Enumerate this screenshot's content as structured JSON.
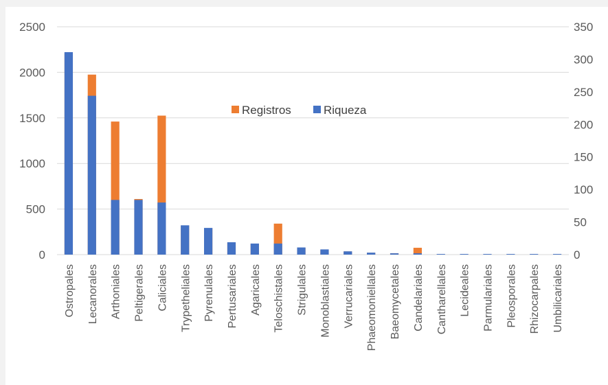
{
  "chart_data": {
    "type": "bar",
    "stacked": true,
    "title": "",
    "xlabel": "",
    "ylabel": "",
    "ylim_left": [
      0,
      2500
    ],
    "ylim_right": [
      0,
      350
    ],
    "left_ticks": [
      "0",
      "500",
      "1000",
      "1500",
      "2000",
      "2500"
    ],
    "right_ticks": [
      "0",
      "50",
      "100",
      "150",
      "200",
      "250",
      "300",
      "350"
    ],
    "grid": true,
    "legend_position": "center",
    "categories": [
      "Ostropales",
      "Lecanorales",
      "Arthoniales",
      "Peltigerales",
      "Caliciales",
      "Trypetheliales",
      "Pyrenulales",
      "Pertusariales",
      "Agaricales",
      "Teloschistales",
      "Strigulales",
      "Monoblastiales",
      "Verrucariales",
      "Phaeomoniellales",
      "Baeomycetales",
      "Candelariales",
      "Cantharellales",
      "Lecideales",
      "Parmulariales",
      "Pleosporales",
      "Rhizocarpales",
      "Umbilicariales"
    ],
    "series": [
      {
        "name": "Registros",
        "color": "#ed7d31",
        "axis": "left",
        "values": [
          2210,
          1975,
          1460,
          610,
          1525,
          320,
          290,
          130,
          120,
          340,
          75,
          55,
          35,
          20,
          15,
          75,
          4,
          3,
          3,
          3,
          3,
          3
        ]
      },
      {
        "name": "Riqueza",
        "color": "#4472c4",
        "axis": "right",
        "values": [
          311,
          244,
          84,
          84,
          80,
          45,
          41,
          19,
          17,
          17,
          11,
          8,
          5,
          3,
          2,
          2,
          1,
          1,
          1,
          1,
          1,
          1
        ]
      }
    ]
  }
}
